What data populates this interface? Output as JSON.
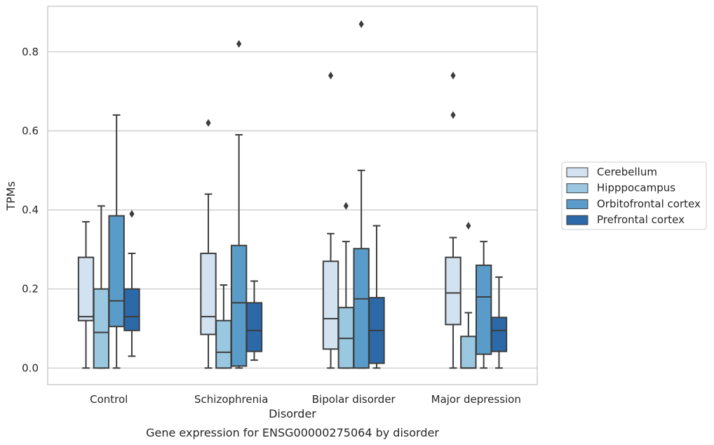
{
  "chart_data": {
    "type": "boxplot",
    "title": "",
    "caption": "Gene expression for ENSG00000275064 by disorder",
    "xlabel": "Disorder",
    "ylabel": "TPMs",
    "ylim": [
      -0.042,
      0.915
    ],
    "yticks": [
      0.0,
      0.2,
      0.4,
      0.6,
      0.8
    ],
    "ytick_labels": [
      "0.0",
      "0.2",
      "0.4",
      "0.6",
      "0.8"
    ],
    "grid": "horizontal",
    "legend_position": "right",
    "categories": [
      "Control",
      "Schizophrenia",
      "Bipolar disorder",
      "Major depression"
    ],
    "series": [
      {
        "name": "Cerebellum",
        "color": "#d2e2f1",
        "boxes": [
          {
            "whisker_low": 0.0,
            "q1": 0.12,
            "median": 0.13,
            "q3": 0.28,
            "whisker_high": 0.37,
            "outliers": []
          },
          {
            "whisker_low": 0.0,
            "q1": 0.085,
            "median": 0.13,
            "q3": 0.29,
            "whisker_high": 0.44,
            "outliers": [
              0.62
            ]
          },
          {
            "whisker_low": 0.0,
            "q1": 0.048,
            "median": 0.125,
            "q3": 0.27,
            "whisker_high": 0.34,
            "outliers": [
              0.74
            ]
          },
          {
            "whisker_low": 0.0,
            "q1": 0.11,
            "median": 0.19,
            "q3": 0.28,
            "whisker_high": 0.33,
            "outliers": [
              0.64,
              0.74
            ]
          }
        ]
      },
      {
        "name": "Hipppocampus",
        "color": "#9ac8e0",
        "boxes": [
          {
            "whisker_low": 0.0,
            "q1": 0.0,
            "median": 0.09,
            "q3": 0.2,
            "whisker_high": 0.41,
            "outliers": []
          },
          {
            "whisker_low": 0.0,
            "q1": 0.0,
            "median": 0.04,
            "q3": 0.12,
            "whisker_high": 0.21,
            "outliers": []
          },
          {
            "whisker_low": 0.0,
            "q1": 0.0,
            "median": 0.075,
            "q3": 0.153,
            "whisker_high": 0.32,
            "outliers": [
              0.41
            ]
          },
          {
            "whisker_low": 0.0,
            "q1": 0.0,
            "median": 0.0,
            "q3": 0.08,
            "whisker_high": 0.14,
            "outliers": [
              0.36
            ]
          }
        ]
      },
      {
        "name": "Orbitofrontal cortex",
        "color": "#5a9cc9",
        "boxes": [
          {
            "whisker_low": 0.0,
            "q1": 0.105,
            "median": 0.17,
            "q3": 0.385,
            "whisker_high": 0.64,
            "outliers": []
          },
          {
            "whisker_low": 0.0,
            "q1": 0.005,
            "median": 0.165,
            "q3": 0.31,
            "whisker_high": 0.59,
            "outliers": [
              0.82
            ]
          },
          {
            "whisker_low": 0.0,
            "q1": 0.0,
            "median": 0.175,
            "q3": 0.302,
            "whisker_high": 0.5,
            "outliers": [
              0.87
            ]
          },
          {
            "whisker_low": 0.0,
            "q1": 0.035,
            "median": 0.18,
            "q3": 0.26,
            "whisker_high": 0.32,
            "outliers": []
          }
        ]
      },
      {
        "name": "Prefrontal cortex",
        "color": "#2c69a9",
        "boxes": [
          {
            "whisker_low": 0.03,
            "q1": 0.095,
            "median": 0.13,
            "q3": 0.2,
            "whisker_high": 0.29,
            "outliers": [
              0.39
            ]
          },
          {
            "whisker_low": 0.02,
            "q1": 0.042,
            "median": 0.095,
            "q3": 0.165,
            "whisker_high": 0.22,
            "outliers": []
          },
          {
            "whisker_low": 0.0,
            "q1": 0.012,
            "median": 0.095,
            "q3": 0.178,
            "whisker_high": 0.36,
            "outliers": []
          },
          {
            "whisker_low": 0.0,
            "q1": 0.042,
            "median": 0.095,
            "q3": 0.128,
            "whisker_high": 0.23,
            "outliers": []
          }
        ]
      }
    ]
  }
}
